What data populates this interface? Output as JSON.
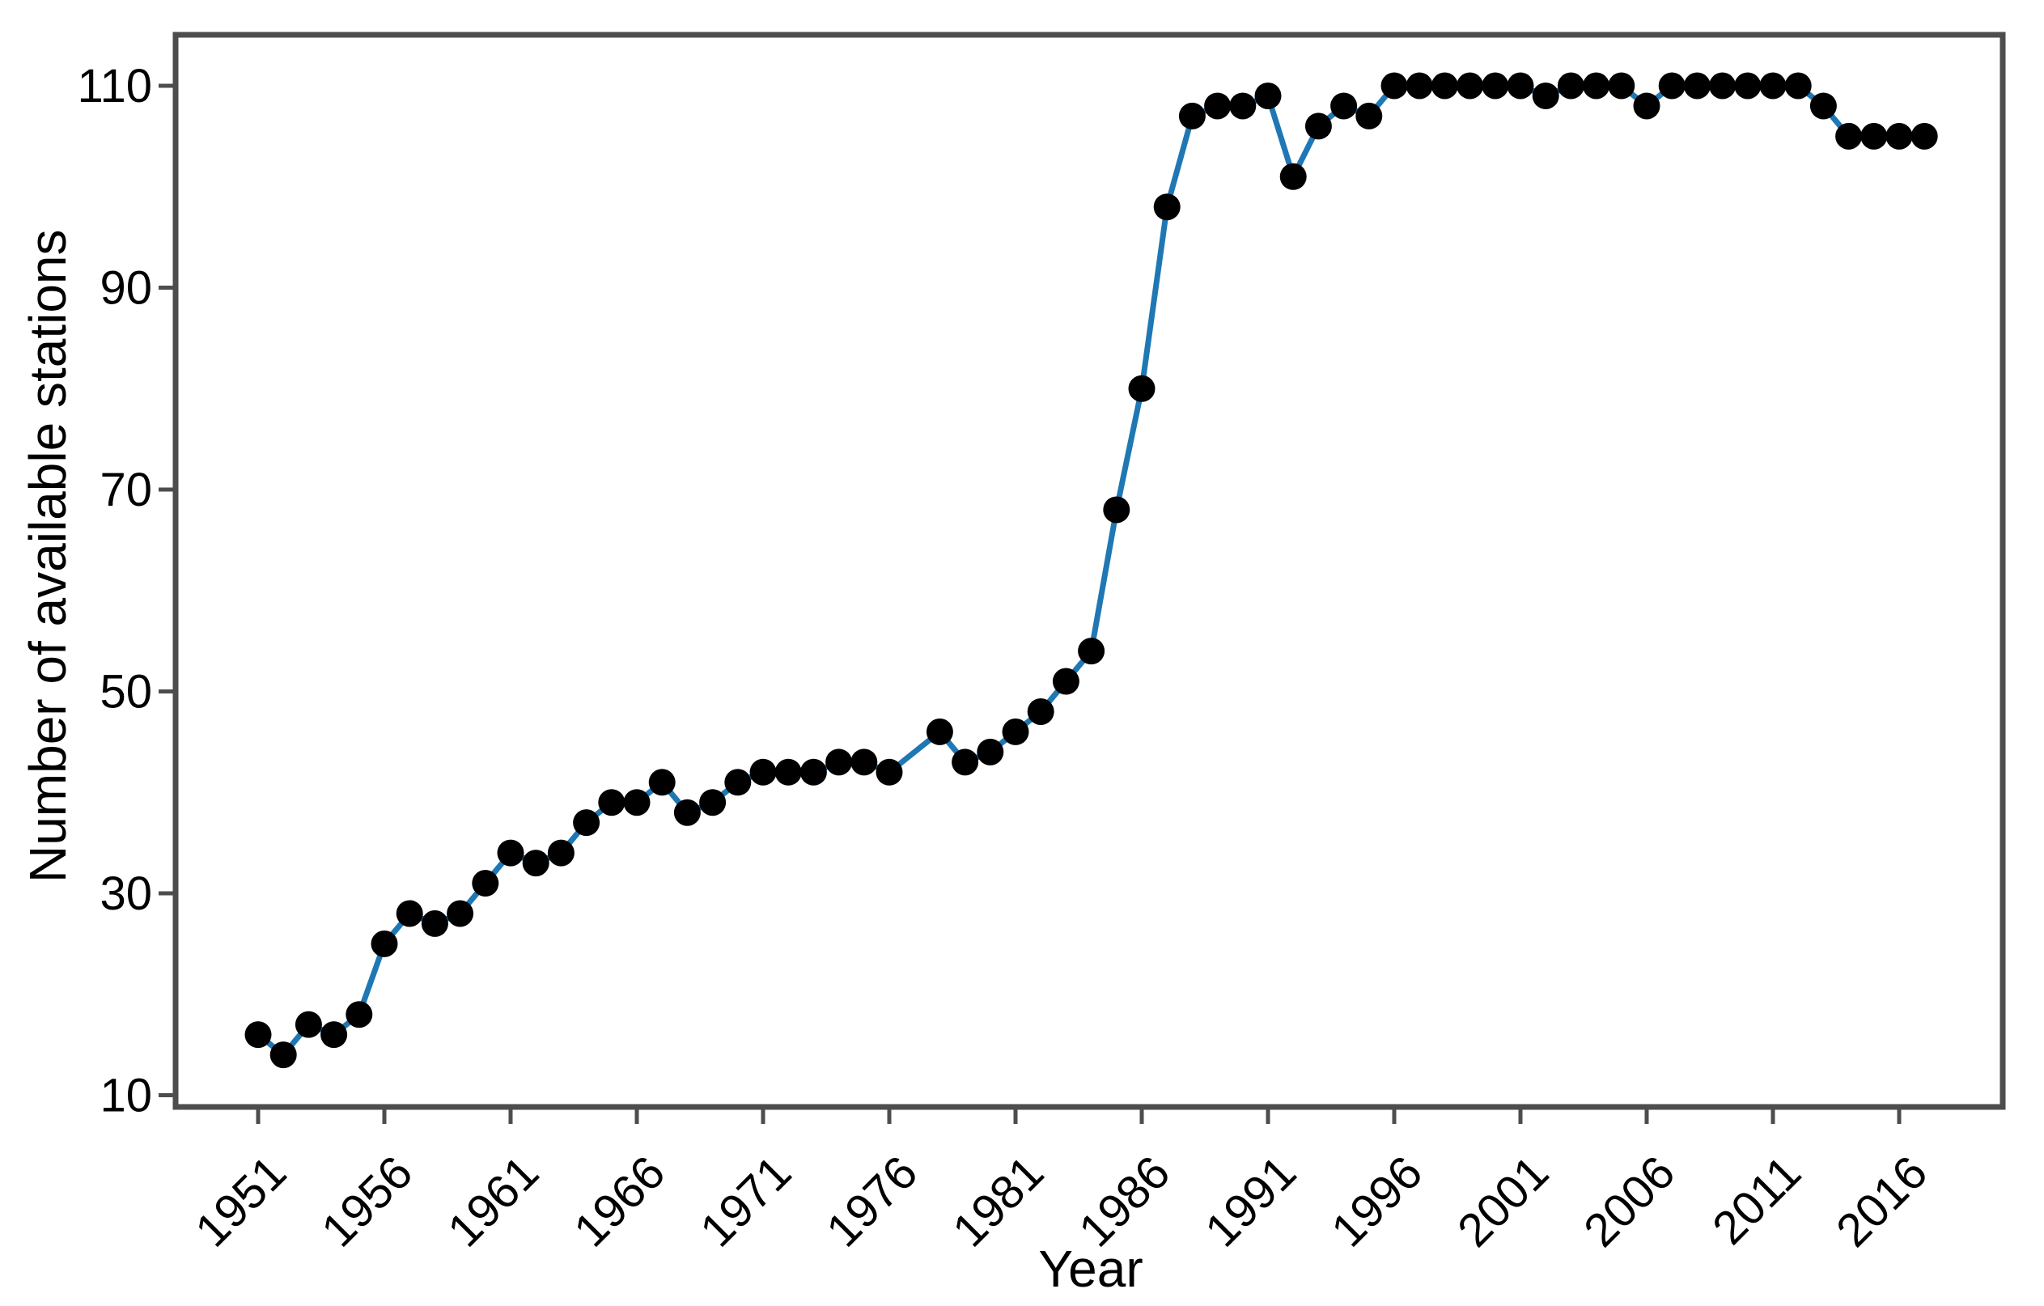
{
  "figure": {
    "background_color": "#ffffff",
    "panel_border_color": "#4d4d4d",
    "tick_color": "#4d4d4d",
    "text_color": "#000000"
  },
  "chart_data": {
    "type": "line",
    "title": "",
    "xlabel": "Year",
    "ylabel": "Number of available stations",
    "x": [
      1951,
      1952,
      1953,
      1954,
      1955,
      1956,
      1957,
      1958,
      1959,
      1960,
      1961,
      1962,
      1963,
      1964,
      1965,
      1966,
      1967,
      1968,
      1969,
      1970,
      1971,
      1972,
      1973,
      1974,
      1975,
      1976,
      1977,
      1978,
      1979,
      1980,
      1981,
      1982,
      1983,
      1984,
      1985,
      1986,
      1987,
      1988,
      1989,
      1990,
      1991,
      1992,
      1993,
      1994,
      1995,
      1996,
      1997,
      1998,
      1999,
      2000,
      2001,
      2002,
      2003,
      2004,
      2005,
      2006,
      2007,
      2008,
      2009,
      2010,
      2011,
      2012,
      2013,
      2014,
      2015,
      2016,
      2017
    ],
    "values": [
      16,
      14,
      17,
      16,
      18,
      25,
      28,
      27,
      28,
      31,
      34,
      33,
      34,
      37,
      39,
      39,
      41,
      38,
      39,
      41,
      42,
      42,
      42,
      43,
      43,
      42,
      null,
      46,
      43,
      44,
      46,
      48,
      51,
      54,
      68,
      80,
      98,
      107,
      108,
      108,
      109,
      101,
      106,
      108,
      107,
      110,
      110,
      110,
      110,
      110,
      110,
      109,
      110,
      110,
      110,
      108,
      110,
      110,
      110,
      110,
      110,
      110,
      108,
      105,
      105,
      105,
      105
    ],
    "series_note": "single series; 1977 has no marker (line interpolates)",
    "xticks": [
      1951,
      1956,
      1961,
      1966,
      1971,
      1976,
      1981,
      1986,
      1991,
      1996,
      2001,
      2006,
      2011,
      2016
    ],
    "yticks": [
      110,
      90,
      70,
      50,
      30,
      10
    ],
    "xlim_years": [
      1947.7,
      2020.1
    ],
    "ylim": [
      8.8,
      115.1
    ],
    "grid": false,
    "legend": false,
    "line_color": "#1f78b4",
    "marker_color": "#000000",
    "marker_shape": "circle"
  }
}
